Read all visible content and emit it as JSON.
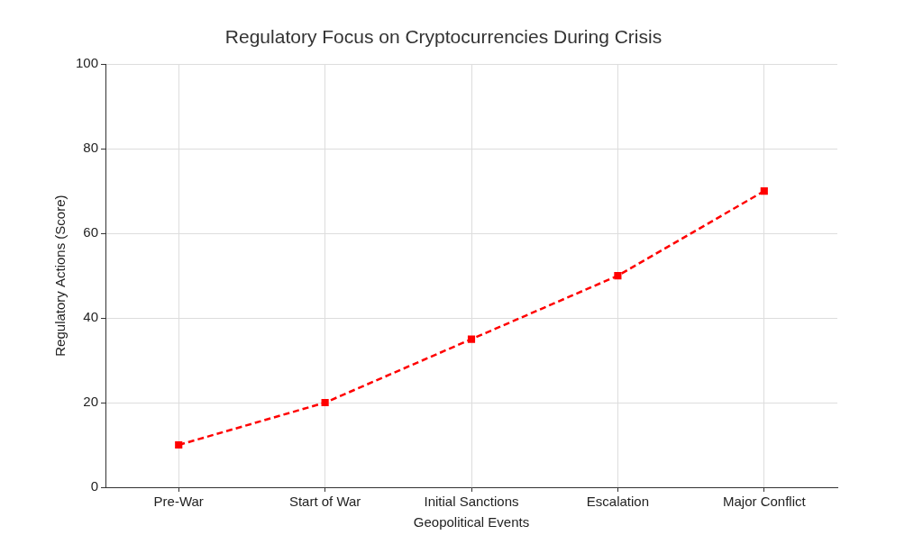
{
  "chart_data": {
    "type": "line",
    "title": "Regulatory Focus on Cryptocurrencies During Crisis",
    "x_label": "Geopolitical Events",
    "y_label": "Regulatory Actions (Score)",
    "categories": [
      "Pre-War",
      "Start of War",
      "Initial Sanctions",
      "Escalation",
      "Major Conflict"
    ],
    "values": [
      10,
      20,
      35,
      50,
      70
    ],
    "color": "#ff0000",
    "marker": "square",
    "line_style": "dashed",
    "ylim": [
      0,
      100
    ],
    "yticks": [
      0,
      20,
      40,
      60,
      80,
      100
    ],
    "grid": true
  }
}
